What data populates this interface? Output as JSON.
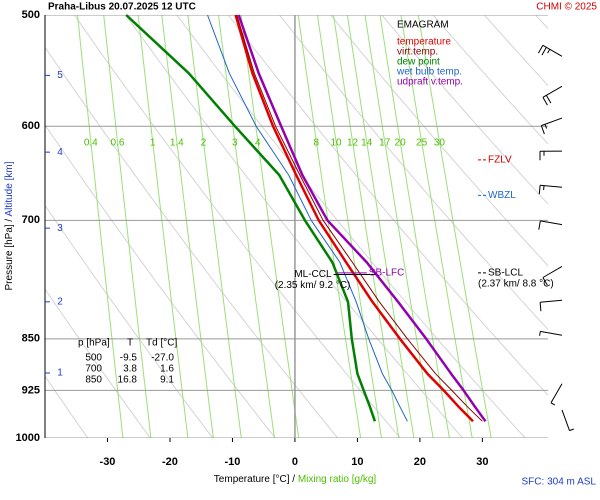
{
  "chart_data": {
    "type": "emagram",
    "title": "Praha-Libus   20.07.2025 12 UTC",
    "copyright": "CHMI © 2025",
    "legend_title": "EMAGRAM",
    "y_label": "Pressure [hPa]  /",
    "y2_label": "Altitude [km]",
    "x_label": "Temperature [°C]  /",
    "x2_label": "Mixing ratio [g/kg]",
    "footer": "SFC: 304 m ASL",
    "xlim": [
      -40,
      40.5
    ],
    "ylim": [
      1000,
      500
    ],
    "log_scale_y": true,
    "xticks": [
      -30,
      -20,
      -10,
      0,
      10,
      20,
      30
    ],
    "yticks": [
      500,
      600,
      700,
      850,
      925,
      1000
    ],
    "altitude_ticks": [
      {
        "value": 1,
        "pressure": 899
      },
      {
        "value": 2,
        "pressure": 800
      },
      {
        "value": 3,
        "pressure": 709
      },
      {
        "value": 4,
        "pressure": 626
      },
      {
        "value": 5,
        "pressure": 552
      }
    ],
    "mixing_ratios": [
      {
        "value": 0.4,
        "label": "0.4"
      },
      {
        "value": 0.6,
        "label": "0.6"
      },
      1,
      {
        "value": 1.4,
        "label": "1.4"
      },
      2,
      3,
      4,
      8,
      10,
      12,
      14,
      17,
      20,
      25,
      30
    ],
    "pressure": [
      973,
      950,
      925,
      900,
      850,
      800,
      750,
      700,
      650,
      600,
      550,
      500
    ],
    "series": [
      {
        "name": "temperature",
        "color": "#e00000",
        "width": 2.5,
        "values": [
          28.5,
          26.2,
          23.8,
          21.2,
          16.8,
          12.4,
          8.2,
          3.8,
          0.2,
          -3.5,
          -6.8,
          -9.5
        ]
      },
      {
        "name": "virt.temp.",
        "color": "#8b0000",
        "width": 1,
        "values": [
          30.0,
          27.6,
          25.1,
          22.5,
          18.0,
          13.5,
          9.2,
          4.5,
          0.8,
          -3.1,
          -6.5,
          -9.3
        ]
      },
      {
        "name": "dew point",
        "color": "#008000",
        "width": 2.5,
        "values": [
          12.8,
          12.0,
          11.0,
          10.0,
          9.1,
          8.5,
          6.0,
          1.6,
          -2.5,
          -9.6,
          -17.0,
          -27.0
        ]
      },
      {
        "name": "wet bulb temp.",
        "color": "#1e64c8",
        "width": 1,
        "values": [
          18.0,
          16.8,
          15.5,
          14.0,
          11.8,
          9.8,
          7.2,
          2.6,
          -1.0,
          -6.2,
          -10.5,
          -14.0
        ]
      },
      {
        "name": "udpraft v.temp.",
        "color": "#9400b0",
        "width": 2.5,
        "values": [
          30.5,
          28.8,
          27.0,
          25.0,
          21.0,
          16.5,
          11.5,
          5.2,
          1.2,
          -2.2,
          -5.8,
          -9.0
        ]
      }
    ],
    "levels": [
      {
        "label": "FZLV",
        "pressure": 634,
        "color": "#d00000"
      },
      {
        "label": "WBZL",
        "pressure": 672,
        "color": "#1e64c8"
      },
      {
        "label": "SB-LCL",
        "sublabel": "(2.37 km/ 8.8 °C)",
        "pressure": 763,
        "color": "#000000"
      }
    ],
    "annotations": [
      {
        "label": "ML-CCL",
        "sublabel": "(2.35 km/ 9.2 °C)",
        "pressure": 765,
        "temperature": 6.5,
        "color": "#000000"
      },
      {
        "label": "SB-LFC",
        "pressure": 763,
        "temperature": 11.5,
        "color": "#9400b0"
      }
    ],
    "table": {
      "header": [
        "p [hPa]",
        "T",
        "Td [°C]"
      ],
      "rows": [
        [
          "500",
          "-9.5",
          "-27.0"
        ],
        [
          "700",
          "3.8",
          "1.6"
        ],
        [
          "850",
          "16.8",
          "9.1"
        ]
      ]
    },
    "wind": [
      {
        "pressure": 535,
        "direction": 300,
        "speed": 25
      },
      {
        "pressure": 562,
        "direction": 240,
        "speed": 20
      },
      {
        "pressure": 592,
        "direction": 250,
        "speed": 15
      },
      {
        "pressure": 625,
        "direction": 270,
        "speed": 15
      },
      {
        "pressure": 663,
        "direction": 275,
        "speed": 15
      },
      {
        "pressure": 705,
        "direction": 280,
        "speed": 10
      },
      {
        "pressure": 755,
        "direction": 240,
        "speed": 10
      },
      {
        "pressure": 798,
        "direction": 265,
        "speed": 10
      },
      {
        "pressure": 845,
        "direction": 280,
        "speed": 5
      },
      {
        "pressure": 915,
        "direction": 210,
        "speed": 5
      },
      {
        "pressure": 955,
        "direction": 160,
        "speed": 5
      }
    ]
  }
}
